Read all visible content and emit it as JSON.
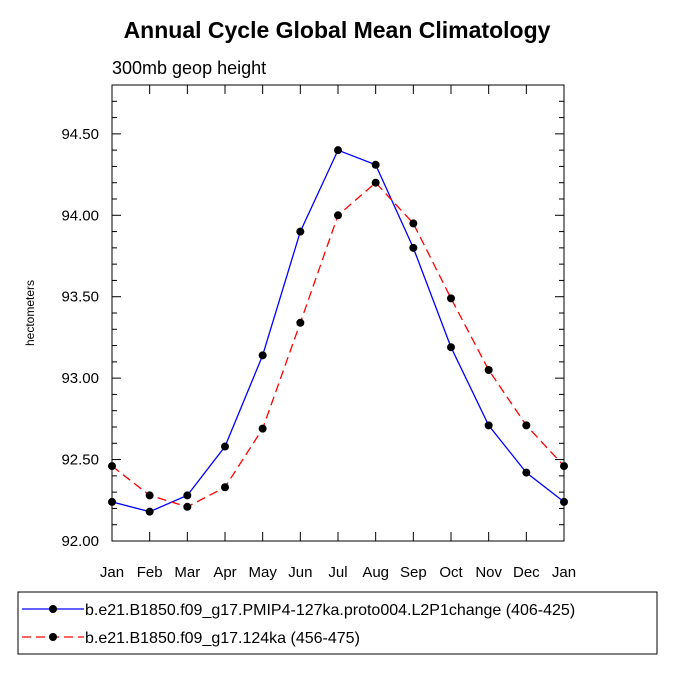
{
  "chart_data": {
    "type": "line",
    "title": "Annual Cycle Global Mean Climatology",
    "subtitle": "300mb geop height",
    "xlabel": "",
    "ylabel": "hectometers",
    "categories": [
      "Jan",
      "Feb",
      "Mar",
      "Apr",
      "May",
      "Jun",
      "Jul",
      "Aug",
      "Sep",
      "Oct",
      "Nov",
      "Dec",
      "Jan"
    ],
    "ylim": [
      92.0,
      94.8
    ],
    "yticks": [
      "92.00",
      "92.50",
      "93.00",
      "93.50",
      "94.00",
      "94.50"
    ],
    "grid": false,
    "legend_position": "bottom",
    "series": [
      {
        "name": "b.e21.B1850.f09_g17.PMIP4-127ka.proto004.L2P1change (406-425)",
        "color": "#0000ff",
        "line_style": "solid",
        "values": [
          92.24,
          92.18,
          92.28,
          92.58,
          93.14,
          93.9,
          94.4,
          94.31,
          93.8,
          93.19,
          92.71,
          92.42,
          92.24
        ]
      },
      {
        "name": "b.e21.B1850.f09_g17.124ka (456-475)",
        "color": "#ff0000",
        "line_style": "dashed",
        "values": [
          92.46,
          92.28,
          92.21,
          92.33,
          92.69,
          93.34,
          94.0,
          94.2,
          93.95,
          93.49,
          93.05,
          92.71,
          92.46
        ]
      }
    ]
  }
}
